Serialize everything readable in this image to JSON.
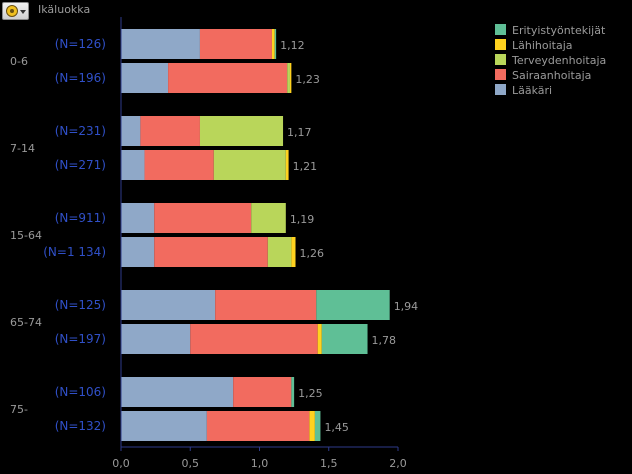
{
  "toolbar": {
    "menu_icon": "chart-options-icon",
    "group_label": "Ikäluokka"
  },
  "colors": {
    "background": "#000000",
    "axis": "#2e3a8a",
    "label_blue": "#3050c8",
    "text_gray": "#9a9a9a"
  },
  "chart_data": {
    "type": "bar",
    "orientation": "horizontal",
    "stacked": true,
    "xlim": [
      0,
      2.0
    ],
    "xticks": [
      "0,0",
      "0,5",
      "1,0",
      "1,5",
      "2,0"
    ],
    "xtick_values": [
      0,
      0.5,
      1.0,
      1.5,
      2.0
    ],
    "legend_position": "top-right",
    "series": [
      {
        "name": "Erityistyöntekijät",
        "color": "#5fbf96"
      },
      {
        "name": "Lähihoitaja",
        "color": "#ffd21f"
      },
      {
        "name": "Terveydenhoitaja",
        "color": "#b9d65a"
      },
      {
        "name": "Sairaanhoitaja",
        "color": "#f26b5f"
      },
      {
        "name": "Lääkäri",
        "color": "#8fa8c8"
      }
    ],
    "groups": [
      {
        "label": "0-6",
        "bars": [
          {
            "n_label": "(N=126)",
            "total_label": "1,12",
            "values": {
              "Lääkäri": 0.57,
              "Sairaanhoitaja": 0.52,
              "Terveydenhoitaja": 0.0,
              "Lähihoitaja": 0.02,
              "Erityistyöntekijät": 0.01
            }
          },
          {
            "n_label": "(N=196)",
            "total_label": "1,23",
            "values": {
              "Lääkäri": 0.34,
              "Sairaanhoitaja": 0.86,
              "Terveydenhoitaja": 0.02,
              "Lähihoitaja": 0.01,
              "Erityistyöntekijät": 0.0
            }
          }
        ]
      },
      {
        "label": "7-14",
        "bars": [
          {
            "n_label": "(N=231)",
            "total_label": "1,17",
            "values": {
              "Lääkäri": 0.14,
              "Sairaanhoitaja": 0.43,
              "Terveydenhoitaja": 0.6,
              "Lähihoitaja": 0.0,
              "Erityistyöntekijät": 0.0
            }
          },
          {
            "n_label": "(N=271)",
            "total_label": "1,21",
            "values": {
              "Lääkäri": 0.17,
              "Sairaanhoitaja": 0.5,
              "Terveydenhoitaja": 0.52,
              "Lähihoitaja": 0.02,
              "Erityistyöntekijät": 0.0
            }
          }
        ]
      },
      {
        "label": "15-64",
        "bars": [
          {
            "n_label": "(N=911)",
            "total_label": "1,19",
            "values": {
              "Lääkäri": 0.24,
              "Sairaanhoitaja": 0.7,
              "Terveydenhoitaja": 0.25,
              "Lähihoitaja": 0.0,
              "Erityistyöntekijät": 0.0
            }
          },
          {
            "n_label": "(N=1 134)",
            "total_label": "1,26",
            "values": {
              "Lääkäri": 0.24,
              "Sairaanhoitaja": 0.82,
              "Terveydenhoitaja": 0.17,
              "Lähihoitaja": 0.03,
              "Erityistyöntekijät": 0.0
            }
          }
        ]
      },
      {
        "label": "65-74",
        "bars": [
          {
            "n_label": "(N=125)",
            "total_label": "1,94",
            "values": {
              "Lääkäri": 0.68,
              "Sairaanhoitaja": 0.73,
              "Terveydenhoitaja": 0.0,
              "Lähihoitaja": 0.0,
              "Erityistyöntekijät": 0.53
            }
          },
          {
            "n_label": "(N=197)",
            "total_label": "1,78",
            "values": {
              "Lääkäri": 0.5,
              "Sairaanhoitaja": 0.92,
              "Terveydenhoitaja": 0.0,
              "Lähihoitaja": 0.03,
              "Erityistyöntekijät": 0.33
            }
          }
        ]
      },
      {
        "label": "75-",
        "bars": [
          {
            "n_label": "(N=106)",
            "total_label": "1,25",
            "values": {
              "Lääkäri": 0.81,
              "Sairaanhoitaja": 0.42,
              "Terveydenhoitaja": 0.0,
              "Lähihoitaja": 0.0,
              "Erityistyöntekijät": 0.02
            }
          },
          {
            "n_label": "(N=132)",
            "total_label": "1,45",
            "values": {
              "Lääkäri": 0.62,
              "Sairaanhoitaja": 0.74,
              "Terveydenhoitaja": 0.0,
              "Lähihoitaja": 0.04,
              "Erityistyöntekijät": 0.04
            }
          }
        ]
      }
    ]
  }
}
